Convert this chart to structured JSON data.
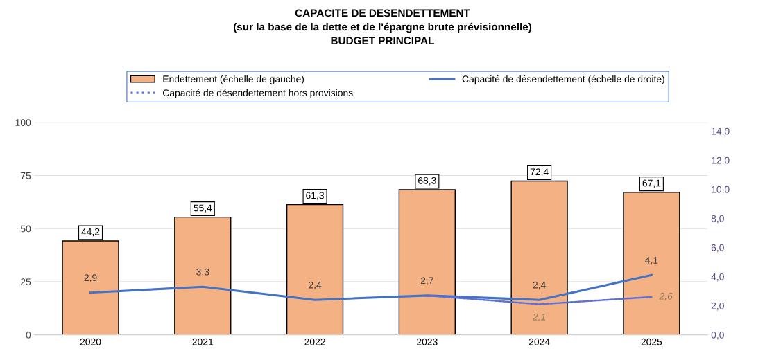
{
  "chart_data": {
    "type": "bar",
    "title": "CAPACITE DE DESENDETTEMENT\n(sur la base de la dette et de l'épargne brute prévisionnelle)\nBUDGET PRINCIPAL",
    "categories": [
      "2020",
      "2021",
      "2022",
      "2023",
      "2024",
      "2025"
    ],
    "series": [
      {
        "name": "Endettement (échelle de gauche)",
        "color": "#f4b183",
        "values": [
          44.2,
          55.4,
          61.3,
          68.3,
          72.4,
          67.1
        ],
        "value_labels": [
          "44,2",
          "55,4",
          "61,3",
          "68,3",
          "72,4",
          "67,1"
        ]
      },
      {
        "name": "Capacité de désendettement (échelle de droite)",
        "type": "line",
        "axis": "y2",
        "color": "#4472c4",
        "line_style": "solid",
        "values": [
          2.9,
          3.3,
          2.4,
          2.7,
          2.4,
          4.1
        ],
        "value_labels": [
          "2,9",
          "3,3",
          "2,4",
          "2,7",
          "2,4",
          "4,1"
        ]
      },
      {
        "name": "Capacité de désendettement hors provisions",
        "type": "line",
        "axis": "y2",
        "color": "#5b6fd6",
        "line_style": "dotted",
        "values": [
          null,
          null,
          null,
          2.7,
          2.1,
          2.6
        ],
        "value_labels": [
          null,
          null,
          null,
          null,
          "2,1",
          "2,6"
        ]
      }
    ],
    "ylim": [
      0,
      100
    ],
    "yticks": [
      0,
      25,
      50,
      75,
      100
    ],
    "y2lim": [
      0,
      14.6
    ],
    "y2ticks": [
      {
        "value": 0,
        "label": "0,0"
      },
      {
        "value": 2,
        "label": "2,0"
      },
      {
        "value": 4,
        "label": "4,0"
      },
      {
        "value": 6,
        "label": "6,0"
      },
      {
        "value": 8,
        "label": "8,0"
      },
      {
        "value": 10,
        "label": "10,0"
      },
      {
        "value": 12,
        "label": "12,0"
      },
      {
        "value": 14,
        "label": "14,0"
      }
    ],
    "grid": "y",
    "legend": "top",
    "marker": "none"
  }
}
